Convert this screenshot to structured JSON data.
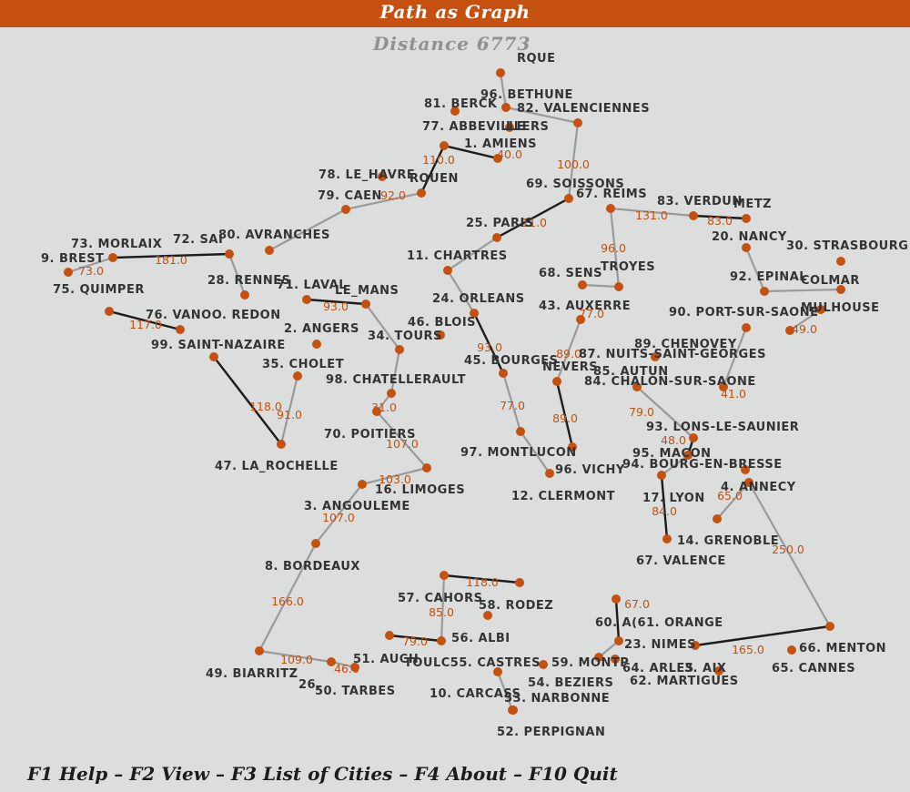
{
  "header": {
    "title": "Path as Graph"
  },
  "distance_label": "Distance 6773",
  "footer": {
    "menu": "F1 Help – F2 View – F3 List of Cities – F4 About – F10 Quit"
  },
  "colors": {
    "accent": "#c5500f",
    "node": "#c5500f",
    "edge_dark": "#1c1c1c",
    "edge_light": "#9a9a9a",
    "background": "#dcdedd"
  },
  "cities": [
    {
      "id": "rque",
      "label": "RQUE"
    },
    {
      "id": "bethune",
      "label": "96. BETHUNE"
    },
    {
      "id": "berck",
      "label": "81. BERCK"
    },
    {
      "id": "valenciennes",
      "label": "82. VALENCIENNES"
    },
    {
      "id": "abbeville",
      "label": "77. ABBEVILLE"
    },
    {
      "id": "llers",
      "label": "LLERS"
    },
    {
      "id": "amiens",
      "label": "1. AMIENS"
    },
    {
      "id": "le_havre",
      "label": "78. LE_HAVRE"
    },
    {
      "id": "rouen",
      "label": "ROUEN"
    },
    {
      "id": "caen",
      "label": "79. CAEN"
    },
    {
      "id": "soissons",
      "label": "69. SOISSONS"
    },
    {
      "id": "reims",
      "label": "67. REIMS"
    },
    {
      "id": "verdun",
      "label": "83. VERDUN"
    },
    {
      "id": "metz",
      "label": "METZ"
    },
    {
      "id": "paris",
      "label": "25. PARIS"
    },
    {
      "id": "nancy",
      "label": "20. NANCY"
    },
    {
      "id": "strasbourg",
      "label": "30. STRASBOURG"
    },
    {
      "id": "morlaix",
      "label": "73. MORLAIX"
    },
    {
      "id": "sai",
      "label": "72. SAI"
    },
    {
      "id": "avranches",
      "label": "80. AVRANCHES"
    },
    {
      "id": "chartres",
      "label": "11. CHARTRES"
    },
    {
      "id": "brest",
      "label": "9. BREST"
    },
    {
      "id": "rennes",
      "label": "28. RENNES"
    },
    {
      "id": "sens",
      "label": "68. SENS"
    },
    {
      "id": "troyes",
      "label": "TROYES"
    },
    {
      "id": "epinal",
      "label": "92. EPINAL"
    },
    {
      "id": "colmar",
      "label": "COLMAR"
    },
    {
      "id": "quimper",
      "label": "75. QUIMPER"
    },
    {
      "id": "laval",
      "label": "71. LAVAL"
    },
    {
      "id": "le_mans",
      "label": "LE_MANS"
    },
    {
      "id": "orleans",
      "label": "24. ORLEANS"
    },
    {
      "id": "auxerre",
      "label": "43. AUXERRE"
    },
    {
      "id": "mulhouse",
      "label": "MULHOUSE"
    },
    {
      "id": "vannes",
      "label": "76. VANOO. REDON"
    },
    {
      "id": "port_sur_saone",
      "label": "90. PORT-SUR-SAONE"
    },
    {
      "id": "angers",
      "label": "2. ANGERS"
    },
    {
      "id": "blois",
      "label": "46. BLOIS"
    },
    {
      "id": "tours",
      "label": "34. TOURS"
    },
    {
      "id": "saint_nazaire",
      "label": "99. SAINT-NAZAIRE"
    },
    {
      "id": "chenove",
      "label": "89. CHENOVEY"
    },
    {
      "id": "nuits",
      "label": "87. NUITS-SAINT-GEORGES"
    },
    {
      "id": "bourges",
      "label": "45. BOURGES"
    },
    {
      "id": "nevers",
      "label": "NEVERS"
    },
    {
      "id": "cholet",
      "label": "35. CHOLET"
    },
    {
      "id": "beaune",
      "label": "85. AUTUN"
    },
    {
      "id": "chatellerault",
      "label": "98. CHATELLERAULT"
    },
    {
      "id": "chalon",
      "label": "84. CHALON-SUR-SAONE"
    },
    {
      "id": "lons",
      "label": "93. LONS-LE-SAUNIER"
    },
    {
      "id": "poitiers",
      "label": "70. POITIERS"
    },
    {
      "id": "montlucon",
      "label": "97. MONTLUCON"
    },
    {
      "id": "macon",
      "label": "95. MACON"
    },
    {
      "id": "bourg",
      "label": "94. BOURG-EN-BRESSE"
    },
    {
      "id": "la_rochelle",
      "label": "47. LA_ROCHELLE"
    },
    {
      "id": "vichy",
      "label": "96. VICHY"
    },
    {
      "id": "annecy",
      "label": "4. ANNECY"
    },
    {
      "id": "limoges",
      "label": "16. LIMOGES"
    },
    {
      "id": "clermont",
      "label": "12. CLERMONT"
    },
    {
      "id": "lyon",
      "label": "17. LYON"
    },
    {
      "id": "angouleme",
      "label": "3. ANGOULEME"
    },
    {
      "id": "grenoble",
      "label": "14. GRENOBLE"
    },
    {
      "id": "valence",
      "label": "67. VALENCE"
    },
    {
      "id": "bordeaux",
      "label": "8. BORDEAUX"
    },
    {
      "id": "cahors",
      "label": "57. CAHORS"
    },
    {
      "id": "rodez",
      "label": "58. RODEZ"
    },
    {
      "id": "avignon",
      "label": "60. A(61. ORANGE"
    },
    {
      "id": "albi",
      "label": "56. ALBI"
    },
    {
      "id": "nimes",
      "label": "23. NIMES"
    },
    {
      "id": "menton",
      "label": "66. MENTON"
    },
    {
      "id": "auch",
      "label": "51. AUCH"
    },
    {
      "id": "toulouse",
      "label": "TOULC55. CASTRES"
    },
    {
      "id": "montpellier",
      "label": "59. MONTP"
    },
    {
      "id": "arles",
      "label": "64. ARLES"
    },
    {
      "id": "aix",
      "label": "3. AIX"
    },
    {
      "id": "cannes",
      "label": "65. CANNES"
    },
    {
      "id": "biarritz",
      "label": "49. BIARRITZ"
    },
    {
      "id": "pau",
      "label": "26."
    },
    {
      "id": "tarbes",
      "label": "50. TARBES"
    },
    {
      "id": "carcassonne",
      "label": "10. CARCASS"
    },
    {
      "id": "beziers",
      "label": "54. BEZIERS"
    },
    {
      "id": "martigues",
      "label": "62. MARTIGUES"
    },
    {
      "id": "narbonne",
      "label": "53. NARBONNE"
    },
    {
      "id": "perpignan",
      "label": "52. PERPIGNAN"
    }
  ],
  "edges": [
    {
      "a": "rque",
      "b": "bethune",
      "weight": ""
    },
    {
      "a": "bethune",
      "b": "valenciennes",
      "weight": ""
    },
    {
      "a": "valenciennes",
      "b": "soissons",
      "weight": "100.0"
    },
    {
      "a": "abbeville",
      "b": "amiens",
      "weight": "40.0"
    },
    {
      "a": "rouen",
      "b": "abbeville",
      "weight": "110.0"
    },
    {
      "a": "caen",
      "b": "rouen",
      "weight": "92.0"
    },
    {
      "a": "soissons",
      "b": "paris",
      "weight": "11.0"
    },
    {
      "a": "reims",
      "b": "verdun",
      "weight": "131.0"
    },
    {
      "a": "verdun",
      "b": "metz",
      "weight": "83.0"
    },
    {
      "a": "reims",
      "b": "troyes",
      "weight": "96.0"
    },
    {
      "a": "troyes",
      "b": "sens",
      "weight": "77.0"
    },
    {
      "a": "paris",
      "b": "chartres",
      "weight": ""
    },
    {
      "a": "chartres",
      "b": "orleans",
      "weight": ""
    },
    {
      "a": "orleans",
      "b": "bourges",
      "weight": "93.0"
    },
    {
      "a": "bourges",
      "b": "montlucon",
      "weight": "77.0"
    },
    {
      "a": "montlucon",
      "b": "clermont",
      "weight": ""
    },
    {
      "a": "auxerre",
      "b": "nevers",
      "weight": "89.0"
    },
    {
      "a": "nevers",
      "b": "vichy",
      "weight": "89.0"
    },
    {
      "a": "morlaix",
      "b": "sai",
      "weight": "181.0"
    },
    {
      "a": "brest",
      "b": "morlaix",
      "weight": "73.0"
    },
    {
      "a": "sai",
      "b": "rennes",
      "weight": ""
    },
    {
      "a": "avranches",
      "b": "caen",
      "weight": ""
    },
    {
      "a": "laval",
      "b": "le_mans",
      "weight": "93.0"
    },
    {
      "a": "le_mans",
      "b": "tours",
      "weight": ""
    },
    {
      "a": "tours",
      "b": "chatellerault",
      "weight": ""
    },
    {
      "a": "chatellerault",
      "b": "poitiers",
      "weight": "31.0"
    },
    {
      "a": "poitiers",
      "b": "limoges",
      "weight": "107.0"
    },
    {
      "a": "limoges",
      "b": "angouleme",
      "weight": "103.0"
    },
    {
      "a": "angouleme",
      "b": "bordeaux",
      "weight": "107.0"
    },
    {
      "a": "bordeaux",
      "b": "biarritz",
      "weight": "166.0"
    },
    {
      "a": "biarritz",
      "b": "pau",
      "weight": "109.0"
    },
    {
      "a": "pau",
      "b": "tarbes",
      "weight": "46.0"
    },
    {
      "a": "auch",
      "b": "toulouse",
      "weight": "79.0"
    },
    {
      "a": "toulouse",
      "b": "cahors",
      "weight": "85.0"
    },
    {
      "a": "cahors",
      "b": "rodez",
      "weight": "118.0"
    },
    {
      "a": "quimper",
      "b": "vannes",
      "weight": "117.0"
    },
    {
      "a": "saint_nazaire",
      "b": "la_rochelle",
      "weight": "118.0"
    },
    {
      "a": "cholet",
      "b": "la_rochelle",
      "weight": "91.0"
    },
    {
      "a": "lyon",
      "b": "valence",
      "weight": "84.0"
    },
    {
      "a": "annecy",
      "b": "grenoble",
      "weight": "65.0"
    },
    {
      "a": "annecy",
      "b": "menton",
      "weight": "250.0"
    },
    {
      "a": "menton",
      "b": "aix",
      "weight": "165.0"
    },
    {
      "a": "port_sur_saone",
      "b": "mulhouse",
      "weight": "49.0"
    },
    {
      "a": "epinal",
      "b": "colmar",
      "weight": ""
    },
    {
      "a": "nancy",
      "b": "epinal",
      "weight": ""
    },
    {
      "a": "chenove",
      "b": "chalon",
      "weight": "41.0"
    },
    {
      "a": "beaune",
      "b": "lons",
      "weight": "79.0"
    },
    {
      "a": "lons",
      "b": "macon",
      "weight": "48.0"
    },
    {
      "a": "macon",
      "b": "lyon",
      "weight": ""
    },
    {
      "a": "albi",
      "b": "castres",
      "weight": ""
    },
    {
      "a": "carcassonne",
      "b": "narbonne",
      "weight": ""
    },
    {
      "a": "avignon",
      "b": "nimes",
      "weight": "67.0"
    },
    {
      "a": "nimes",
      "b": "montpellier",
      "weight": ""
    }
  ]
}
